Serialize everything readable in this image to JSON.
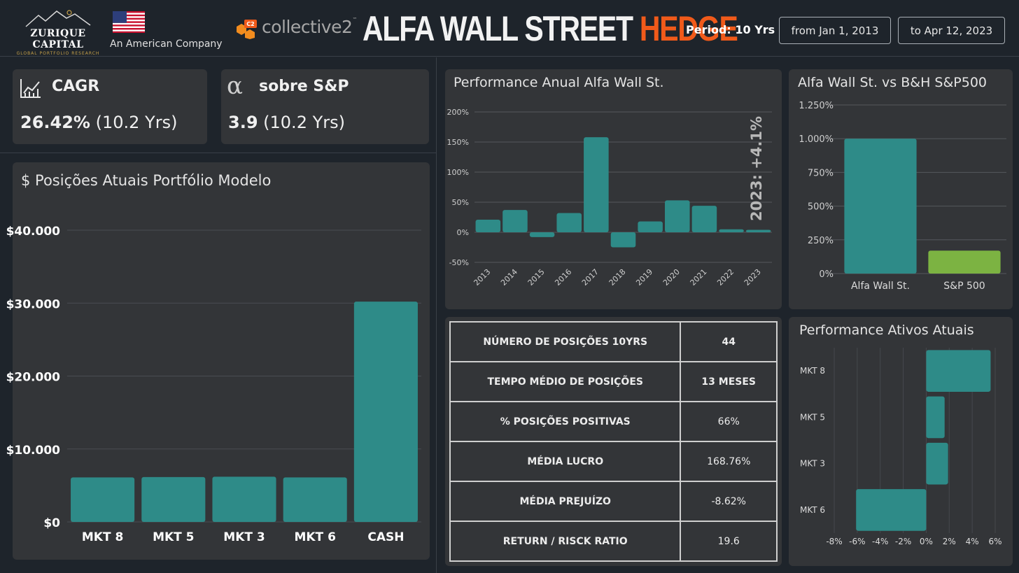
{
  "header": {
    "logo_brand": "ZURIQUE CAPITAL",
    "logo_tagline": "GLOBAL PORTFOLIO RESEARCH",
    "company_note": "An American Company",
    "partner_name": "collective2",
    "partner_badge": "C2",
    "partner_tm": "™",
    "title_main": "ALFA WALL STREET",
    "title_accent": "HEDGE",
    "period_label": "Period: 10 Yrs",
    "date_from": "from Jan 1, 2013",
    "date_to": "to Apr 12, 2023"
  },
  "colors": {
    "accent": "#f05a1a",
    "teal": "#2e8b88",
    "green": "#7cb342",
    "background": "#1e242b",
    "panel": "#333538"
  },
  "kpis": [
    {
      "icon": "line-chart-icon",
      "title": "CAGR",
      "value": "26.42%",
      "note": "(10.2 Yrs)"
    },
    {
      "icon": "alpha-icon",
      "title": "sobre S&P",
      "value": "3.9",
      "note": "(10.2 Yrs)",
      "symbol": "α"
    }
  ],
  "positions_panel": {
    "title": "$ Posições Atuais Portfólio Modelo"
  },
  "annual_panel": {
    "title": "Performance Anual Alfa Wall St.",
    "annotation": "2023: +4.1%"
  },
  "vs_panel": {
    "title": "Alfa Wall St. vs B&H S&P500"
  },
  "assets_panel": {
    "title": "Performance Ativos Atuais"
  },
  "stats": [
    {
      "label": "NÚMERO DE POSIÇÕES 10YRS",
      "value": "44"
    },
    {
      "label": "TEMPO MÉDIO DE POSIÇÕES",
      "value": "13 MESES"
    },
    {
      "label": "% POSIÇÕES POSITIVAS",
      "value": "66%"
    },
    {
      "label": "MÉDIA LUCRO",
      "value": "168.76%"
    },
    {
      "label": "MÉDIA PREJUÍZO",
      "value": "-8.62%"
    },
    {
      "label": "RETURN / RISCK RATIO",
      "value": "19.6"
    }
  ],
  "chart_data": [
    {
      "id": "positions",
      "type": "bar",
      "categories": [
        "MKT 8",
        "MKT 5",
        "MKT 3",
        "MKT 6",
        "CASH"
      ],
      "values": [
        6100,
        6150,
        6200,
        6100,
        30200
      ],
      "ylim": [
        0,
        40000
      ],
      "yticks": [
        0,
        10000,
        20000,
        30000,
        40000
      ],
      "ytick_labels": [
        "$0",
        "$10.000",
        "$20.000",
        "$30.000",
        "$40.000"
      ],
      "grid": true
    },
    {
      "id": "annual",
      "type": "bar",
      "categories": [
        "2013",
        "2014",
        "2015",
        "2016",
        "2017",
        "2018",
        "2019",
        "2020",
        "2021",
        "2022",
        "2023"
      ],
      "values": [
        21,
        37,
        -8,
        32,
        158,
        -25,
        18,
        53,
        44,
        5,
        4.1
      ],
      "ylim": [
        -50,
        200
      ],
      "yticks": [
        -50,
        0,
        50,
        100,
        150,
        200
      ],
      "ytick_labels": [
        "-50%",
        "0%",
        "50%",
        "100%",
        "150%",
        "200%"
      ],
      "grid": true
    },
    {
      "id": "vs",
      "type": "bar",
      "categories": [
        "Alfa Wall St.",
        "S&P 500"
      ],
      "values": [
        1000,
        170
      ],
      "ylim": [
        0,
        1250
      ],
      "yticks": [
        0,
        250,
        500,
        750,
        1000,
        1250
      ],
      "ytick_labels": [
        "0%",
        "250%",
        "500%",
        "750%",
        "1.000%",
        "1.250%"
      ],
      "grid": true
    },
    {
      "id": "assets",
      "type": "bar",
      "orientation": "horizontal",
      "categories": [
        "MKT 8",
        "MKT 5",
        "MKT 3",
        "MKT 6"
      ],
      "values": [
        5.6,
        1.6,
        1.9,
        -6.1
      ],
      "xlim": [
        -8,
        6
      ],
      "xticks": [
        -8,
        -6,
        -4,
        -2,
        0,
        2,
        4,
        6
      ],
      "xtick_labels": [
        "-8%",
        "-6%",
        "-4%",
        "-2%",
        "0%",
        "2%",
        "4%",
        "6%"
      ],
      "grid": true
    }
  ]
}
